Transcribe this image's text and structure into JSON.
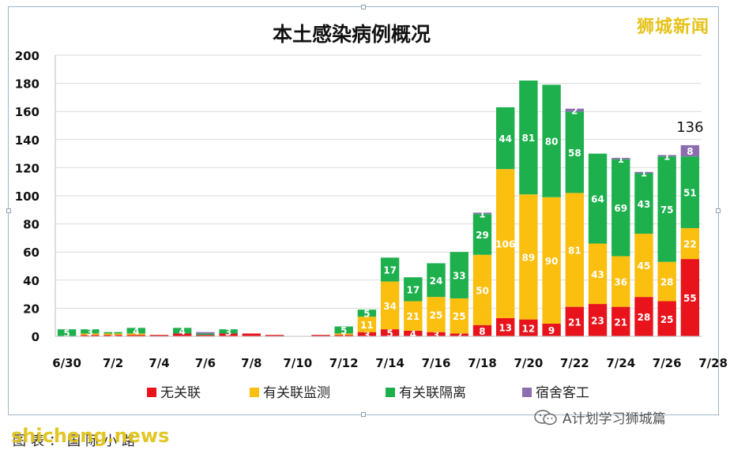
{
  "chart_data": {
    "type": "bar",
    "stacked": true,
    "title": "本土感染病例概况",
    "ylim": [
      0,
      200
    ],
    "yticks": [
      0,
      20,
      40,
      60,
      80,
      100,
      120,
      140,
      160,
      180,
      200
    ],
    "categories": [
      "6/30",
      "7/1",
      "7/2",
      "7/3",
      "7/4",
      "7/5",
      "7/6",
      "7/7",
      "7/8",
      "7/9",
      "7/10",
      "7/11",
      "7/12",
      "7/13",
      "7/14",
      "7/15",
      "7/16",
      "7/17",
      "7/18",
      "7/19",
      "7/20",
      "7/21",
      "7/22",
      "7/23",
      "7/24",
      "7/25",
      "7/26",
      "7/27"
    ],
    "xtick_labels": [
      "6/30",
      "7/2",
      "7/4",
      "7/6",
      "7/8",
      "7/10",
      "7/12",
      "7/14",
      "7/16",
      "7/18",
      "7/20",
      "7/22",
      "7/24",
      "7/26",
      "7/28"
    ],
    "series": [
      {
        "name": "无关联",
        "color": "#e8131b",
        "values": [
          0,
          1,
          1,
          1,
          1,
          2,
          1,
          2,
          2,
          1,
          0,
          1,
          1,
          3,
          5,
          4,
          3,
          2,
          8,
          13,
          12,
          9,
          21,
          23,
          21,
          28,
          25,
          55
        ]
      },
      {
        "name": "有关联监测",
        "color": "#fbbf0f",
        "values": [
          0,
          1,
          1,
          1,
          0,
          0,
          0,
          0,
          0,
          0,
          0,
          0,
          1,
          11,
          34,
          21,
          25,
          25,
          50,
          106,
          89,
          90,
          81,
          43,
          36,
          45,
          28,
          22
        ]
      },
      {
        "name": "有关联隔离",
        "color": "#1db04d",
        "values": [
          5,
          3,
          1,
          4,
          0,
          4,
          1,
          3,
          0,
          0,
          0,
          0,
          5,
          5,
          17,
          17,
          24,
          33,
          29,
          44,
          81,
          80,
          58,
          64,
          69,
          43,
          75,
          51
        ]
      },
      {
        "name": "宿舍客工",
        "color": "#8b6db0",
        "values": [
          0,
          0,
          0,
          0,
          0,
          0,
          1,
          0,
          0,
          0,
          0,
          0,
          0,
          0,
          0,
          0,
          0,
          0,
          1,
          0,
          0,
          0,
          2,
          0,
          1,
          1,
          1,
          8
        ]
      }
    ],
    "segment_labels": [
      [
        null,
        null,
        null,
        null,
        null,
        null,
        null,
        null,
        null,
        null,
        null,
        null,
        null,
        "3",
        "5",
        "4",
        "3",
        "2",
        "8",
        "13",
        "12",
        "9",
        "21",
        "23",
        "21",
        "28",
        "25",
        "55"
      ],
      [
        null,
        "1",
        null,
        null,
        null,
        null,
        null,
        null,
        null,
        null,
        null,
        null,
        "1",
        "11",
        "34",
        "21",
        "25",
        "25",
        "50",
        "106",
        "89",
        "90",
        "81",
        "43",
        "36",
        "45",
        "28",
        "22"
      ],
      [
        "5",
        "3",
        "1",
        "4",
        null,
        "4",
        null,
        "3",
        null,
        null,
        null,
        null,
        "5",
        "5",
        "17",
        "17",
        "24",
        "33",
        "29",
        "44",
        "81",
        "80",
        "58",
        "64",
        "69",
        "43",
        "75",
        "51"
      ],
      [
        null,
        null,
        null,
        null,
        null,
        null,
        null,
        null,
        null,
        null,
        null,
        null,
        null,
        null,
        null,
        null,
        null,
        null,
        "1",
        null,
        null,
        null,
        "2",
        null,
        "1",
        "1",
        "1",
        "8"
      ]
    ],
    "total_annotation": {
      "category": "7/27",
      "value": "136"
    },
    "legend_position": "bottom",
    "grid": true
  },
  "watermark_top": "狮城新闻",
  "watermark_bottom": "shicheng.news",
  "caption": "图表：国际小路",
  "wechat_label": "A计划学习狮城篇"
}
